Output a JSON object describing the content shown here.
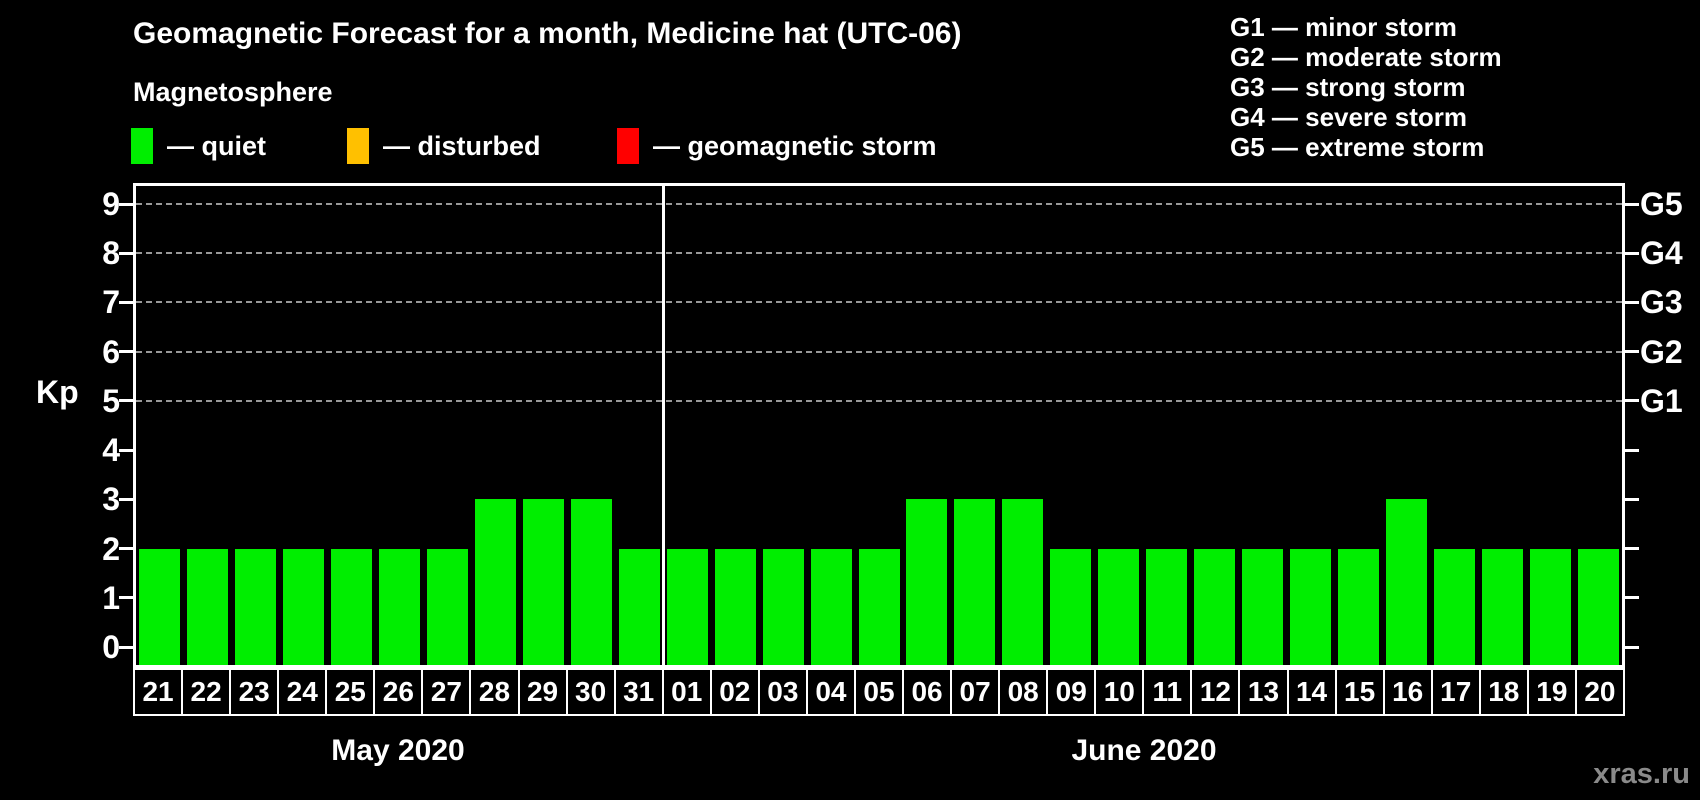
{
  "page": {
    "title": "Geomagnetic Forecast for a month, Medicine hat (UTC-06)",
    "subtitle": "Magnetosphere",
    "watermark": "xras.ru"
  },
  "legend": {
    "items": [
      {
        "label": "— quiet",
        "meaning": "quiet",
        "color": "#00ee00"
      },
      {
        "label": "— disturbed",
        "meaning": "disturbed",
        "color": "#ffc000"
      },
      {
        "label": "— geomagnetic storm",
        "meaning": "storm",
        "color": "#ff0000"
      }
    ]
  },
  "storm_legend": [
    "G1 — minor storm",
    "G2 — moderate storm",
    "G3 — strong storm",
    "G4 — severe storm",
    "G5 — extreme storm"
  ],
  "chart_data": {
    "type": "bar",
    "title": "Geomagnetic Forecast for a month, Medicine hat (UTC-06)",
    "ylabel": "Kp",
    "ylim": [
      0,
      9
    ],
    "yticks": [
      0,
      1,
      2,
      3,
      4,
      5,
      6,
      7,
      8,
      9
    ],
    "grid_levels": [
      5,
      6,
      7,
      8,
      9
    ],
    "grid_style": "dashed-horizontal",
    "legend_position": "top-left",
    "right_axis": [
      {
        "kp": 5,
        "label": "G1"
      },
      {
        "kp": 6,
        "label": "G2"
      },
      {
        "kp": 7,
        "label": "G3"
      },
      {
        "kp": 8,
        "label": "G4"
      },
      {
        "kp": 9,
        "label": "G5"
      }
    ],
    "months": [
      {
        "label": "May 2020",
        "categories": [
          "21",
          "22",
          "23",
          "24",
          "25",
          "26",
          "27",
          "28",
          "29",
          "30",
          "31"
        ],
        "values": [
          2,
          2,
          2,
          2,
          2,
          2,
          2,
          3,
          3,
          3,
          2
        ]
      },
      {
        "label": "June 2020",
        "categories": [
          "01",
          "02",
          "03",
          "04",
          "05",
          "06",
          "07",
          "08",
          "09",
          "10",
          "11",
          "12",
          "13",
          "14",
          "15",
          "16",
          "17",
          "18",
          "19",
          "20"
        ],
        "values": [
          2,
          2,
          2,
          2,
          2,
          3,
          3,
          3,
          2,
          2,
          2,
          2,
          2,
          2,
          2,
          3,
          2,
          2,
          2,
          2
        ]
      }
    ]
  }
}
